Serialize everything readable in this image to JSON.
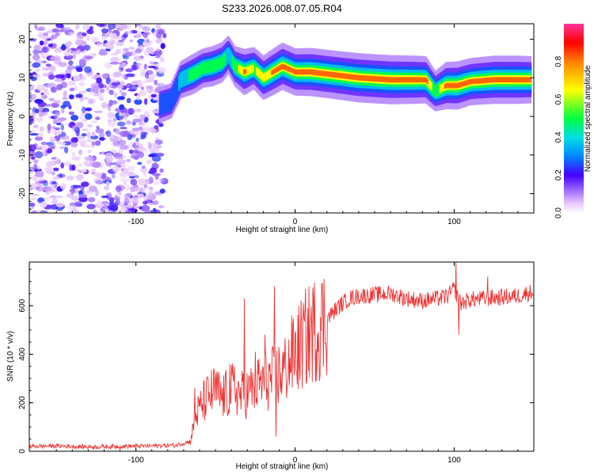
{
  "chart_data": [
    {
      "type": "heatmap",
      "title": "S233.2026.008.07.05.R04",
      "xlabel": "Height of straight line (km)",
      "ylabel": "Frequency (Hz)",
      "xlim": [
        -167,
        150
      ],
      "ylim": [
        -25,
        24
      ],
      "xticks": [
        -100,
        0,
        100
      ],
      "yticks": [
        20,
        10,
        0,
        -10,
        -20
      ],
      "colorbar": {
        "label": "Normalized spectral amplitude",
        "range": [
          0.0,
          1.0
        ],
        "ticks": [
          0.0,
          0.2,
          0.4,
          0.6,
          0.8
        ],
        "tick_labels": [
          "0.0",
          "0.2",
          "0.4",
          "0.6",
          "0.8"
        ]
      },
      "ridge": {
        "x": [
          -85,
          -78,
          -72,
          -64,
          -58,
          -52,
          -46,
          -42,
          -38,
          -32,
          -26,
          -20,
          -14,
          -8,
          0,
          10,
          20,
          40,
          60,
          75,
          82,
          88,
          95,
          102,
          110,
          125,
          140,
          148
        ],
        "freq": [
          3,
          4,
          9.5,
          11,
          12.5,
          13,
          14,
          16,
          13,
          11.5,
          12.5,
          10,
          11.5,
          13,
          11.5,
          11.5,
          11,
          10,
          9.5,
          9.5,
          9.5,
          6.5,
          8,
          8,
          9,
          9.5,
          9.5,
          9.5
        ],
        "peak_amplitude": [
          0.3,
          0.25,
          0.35,
          0.5,
          0.45,
          0.5,
          0.5,
          0.4,
          0.5,
          0.8,
          0.6,
          0.7,
          0.8,
          0.85,
          0.85,
          0.9,
          0.9,
          0.95,
          0.95,
          0.9,
          0.85,
          0.5,
          0.85,
          0.9,
          0.85,
          0.9,
          0.9,
          0.85
        ]
      }
    },
    {
      "type": "line",
      "xlabel": "Height of straight line (km)",
      "ylabel": "SNR (10 * v/v)",
      "xlim": [
        -167,
        150
      ],
      "ylim": [
        0,
        780
      ],
      "xticks": [
        -100,
        0,
        100
      ],
      "yticks": [
        0,
        200,
        400,
        600
      ],
      "color": "#ee3333",
      "series": [
        {
          "name": "SNR",
          "x": [
            -167,
            -150,
            -130,
            -110,
            -90,
            -75,
            -66,
            -62,
            -58,
            -54,
            -50,
            -46,
            -42,
            -38,
            -34,
            -30,
            -26,
            -22,
            -18,
            -14,
            -10,
            -6,
            -2,
            2,
            6,
            10,
            16,
            22,
            28,
            34,
            40,
            50,
            60,
            70,
            80,
            90,
            96,
            100,
            104,
            110,
            120,
            130,
            140,
            150
          ],
          "y": [
            20,
            22,
            18,
            20,
            22,
            25,
            40,
            150,
            200,
            230,
            250,
            220,
            240,
            260,
            230,
            240,
            260,
            280,
            290,
            300,
            320,
            340,
            390,
            420,
            460,
            490,
            520,
            560,
            600,
            630,
            640,
            645,
            650,
            630,
            620,
            630,
            640,
            670,
            610,
            625,
            630,
            635,
            640,
            660
          ],
          "spikes": [
            {
              "x": -63,
              "y": 260
            },
            {
              "x": -49,
              "y": 330
            },
            {
              "x": -41,
              "y": 360
            },
            {
              "x": -32,
              "y": 630
            },
            {
              "x": -25,
              "y": 410
            },
            {
              "x": -19,
              "y": 480
            },
            {
              "x": -13,
              "y": 680
            },
            {
              "x": -12,
              "y": 60
            },
            {
              "x": 101,
              "y": 780
            },
            {
              "x": 103,
              "y": 480
            },
            {
              "x": 121,
              "y": 720
            }
          ]
        }
      ]
    }
  ]
}
